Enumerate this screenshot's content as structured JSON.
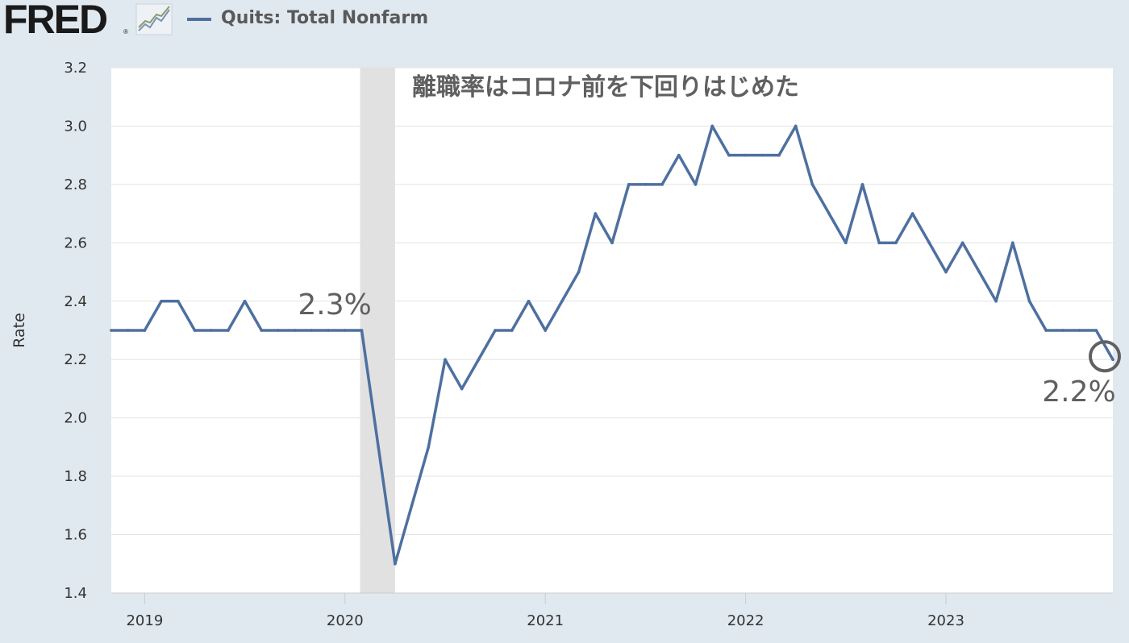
{
  "header": {
    "logo_text": "FRED",
    "logo_mark": "®",
    "logo_icon": "line-chart-icon",
    "legend_label": "Quits: Total Nonfarm"
  },
  "colors": {
    "series": "#4e70a0",
    "background": "#e1e9f0",
    "plot_background": "#ffffff",
    "recession_band": "#e1e1e1",
    "annotation": "#606060"
  },
  "annotations": {
    "title": "離職率はコロナ前を下回りはじめた",
    "pre_covid": "2.3%",
    "latest": "2.2%"
  },
  "chart_data": {
    "type": "line",
    "title": "",
    "xlabel": "",
    "ylabel": "Rate",
    "ylim": [
      1.4,
      3.2
    ],
    "yticks": [
      1.4,
      1.6,
      1.8,
      2.0,
      2.2,
      2.4,
      2.6,
      2.8,
      3.0,
      3.2
    ],
    "ytick_labels": [
      "1.4",
      "1.6",
      "1.8",
      "2.0",
      "2.2",
      "2.4",
      "2.6",
      "2.8",
      "3.0",
      "3.2"
    ],
    "xlim": [
      "2018-11",
      "2023-11"
    ],
    "xticks": [
      "2019-01",
      "2020-01",
      "2021-01",
      "2022-01",
      "2023-01"
    ],
    "xtick_labels": [
      "2019",
      "2020",
      "2021",
      "2022",
      "2023"
    ],
    "grid": true,
    "legend": "top-left",
    "recession": [
      "2020-02",
      "2020-04"
    ],
    "series": [
      {
        "name": "Quits: Total Nonfarm",
        "x": [
          "2018-11",
          "2018-12",
          "2019-01",
          "2019-02",
          "2019-03",
          "2019-04",
          "2019-05",
          "2019-06",
          "2019-07",
          "2019-08",
          "2019-09",
          "2019-10",
          "2019-11",
          "2019-12",
          "2020-01",
          "2020-02",
          "2020-03",
          "2020-04",
          "2020-05",
          "2020-06",
          "2020-07",
          "2020-08",
          "2020-09",
          "2020-10",
          "2020-11",
          "2020-12",
          "2021-01",
          "2021-02",
          "2021-03",
          "2021-04",
          "2021-05",
          "2021-06",
          "2021-07",
          "2021-08",
          "2021-09",
          "2021-10",
          "2021-11",
          "2021-12",
          "2022-01",
          "2022-02",
          "2022-03",
          "2022-04",
          "2022-05",
          "2022-06",
          "2022-07",
          "2022-08",
          "2022-09",
          "2022-10",
          "2022-11",
          "2022-12",
          "2023-01",
          "2023-02",
          "2023-03",
          "2023-04",
          "2023-05",
          "2023-06",
          "2023-07",
          "2023-08",
          "2023-09",
          "2023-10",
          "2023-11"
        ],
        "values": [
          2.3,
          2.3,
          2.3,
          2.4,
          2.4,
          2.3,
          2.3,
          2.3,
          2.4,
          2.3,
          2.3,
          2.3,
          2.3,
          2.3,
          2.3,
          2.3,
          1.9,
          1.5,
          1.7,
          1.9,
          2.2,
          2.1,
          2.2,
          2.3,
          2.3,
          2.4,
          2.3,
          2.4,
          2.5,
          2.7,
          2.6,
          2.8,
          2.8,
          2.8,
          2.9,
          2.8,
          3.0,
          2.9,
          2.9,
          2.9,
          2.9,
          3.0,
          2.8,
          2.7,
          2.6,
          2.8,
          2.6,
          2.6,
          2.7,
          2.6,
          2.5,
          2.6,
          2.5,
          2.4,
          2.6,
          2.4,
          2.3,
          2.3,
          2.3,
          2.3,
          2.2
        ]
      }
    ]
  }
}
